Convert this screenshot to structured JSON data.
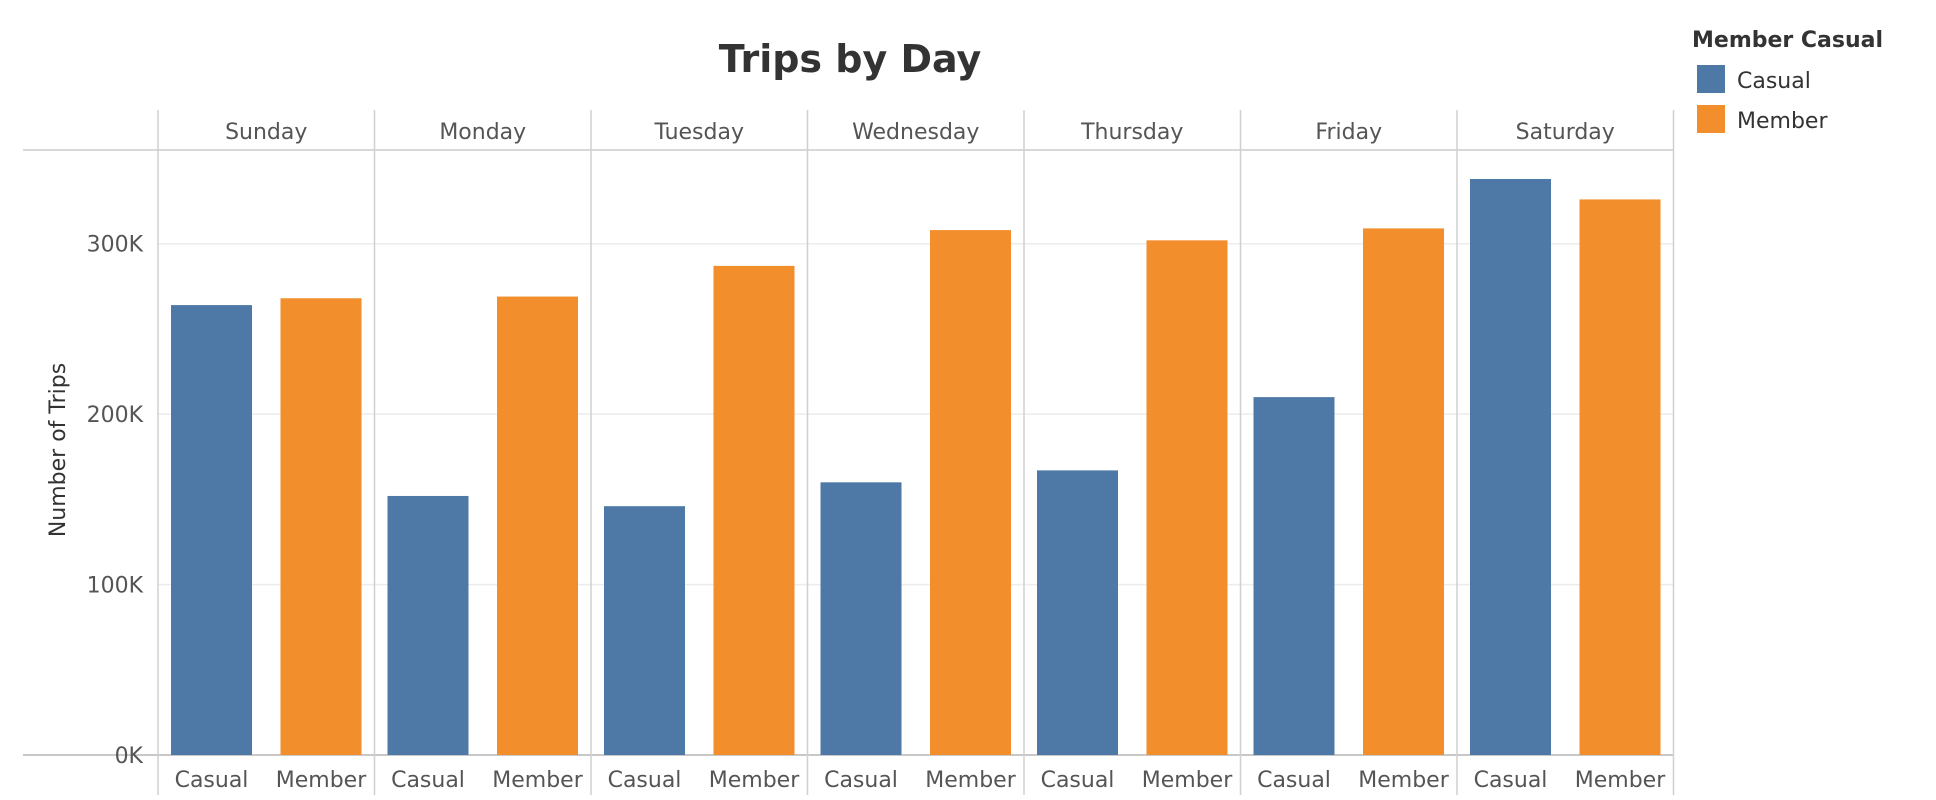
{
  "chart_data": {
    "type": "bar",
    "title": "Trips by Day",
    "ylabel": "Number of Trips",
    "xlabel": "",
    "ylim": [
      0,
      355000
    ],
    "yticks": [
      0,
      100000,
      200000,
      300000
    ],
    "ytick_labels": [
      "0K",
      "100K",
      "200K",
      "300K"
    ],
    "grid": true,
    "legend": {
      "title": "Member Casual",
      "placement": "top-right",
      "entries": [
        {
          "label": "Casual",
          "color": "#4e79a7"
        },
        {
          "label": "Member",
          "color": "#f28e2b"
        }
      ]
    },
    "categories": [
      "Sunday",
      "Monday",
      "Tuesday",
      "Wednesday",
      "Thursday",
      "Friday",
      "Saturday"
    ],
    "sub_categories": [
      "Casual",
      "Member"
    ],
    "series": [
      {
        "name": "Casual",
        "color": "#4e79a7",
        "values": [
          264000,
          152000,
          146000,
          160000,
          167000,
          210000,
          338000
        ]
      },
      {
        "name": "Member",
        "color": "#f28e2b",
        "values": [
          268000,
          269000,
          287000,
          308000,
          302000,
          309000,
          326000
        ]
      }
    ]
  }
}
